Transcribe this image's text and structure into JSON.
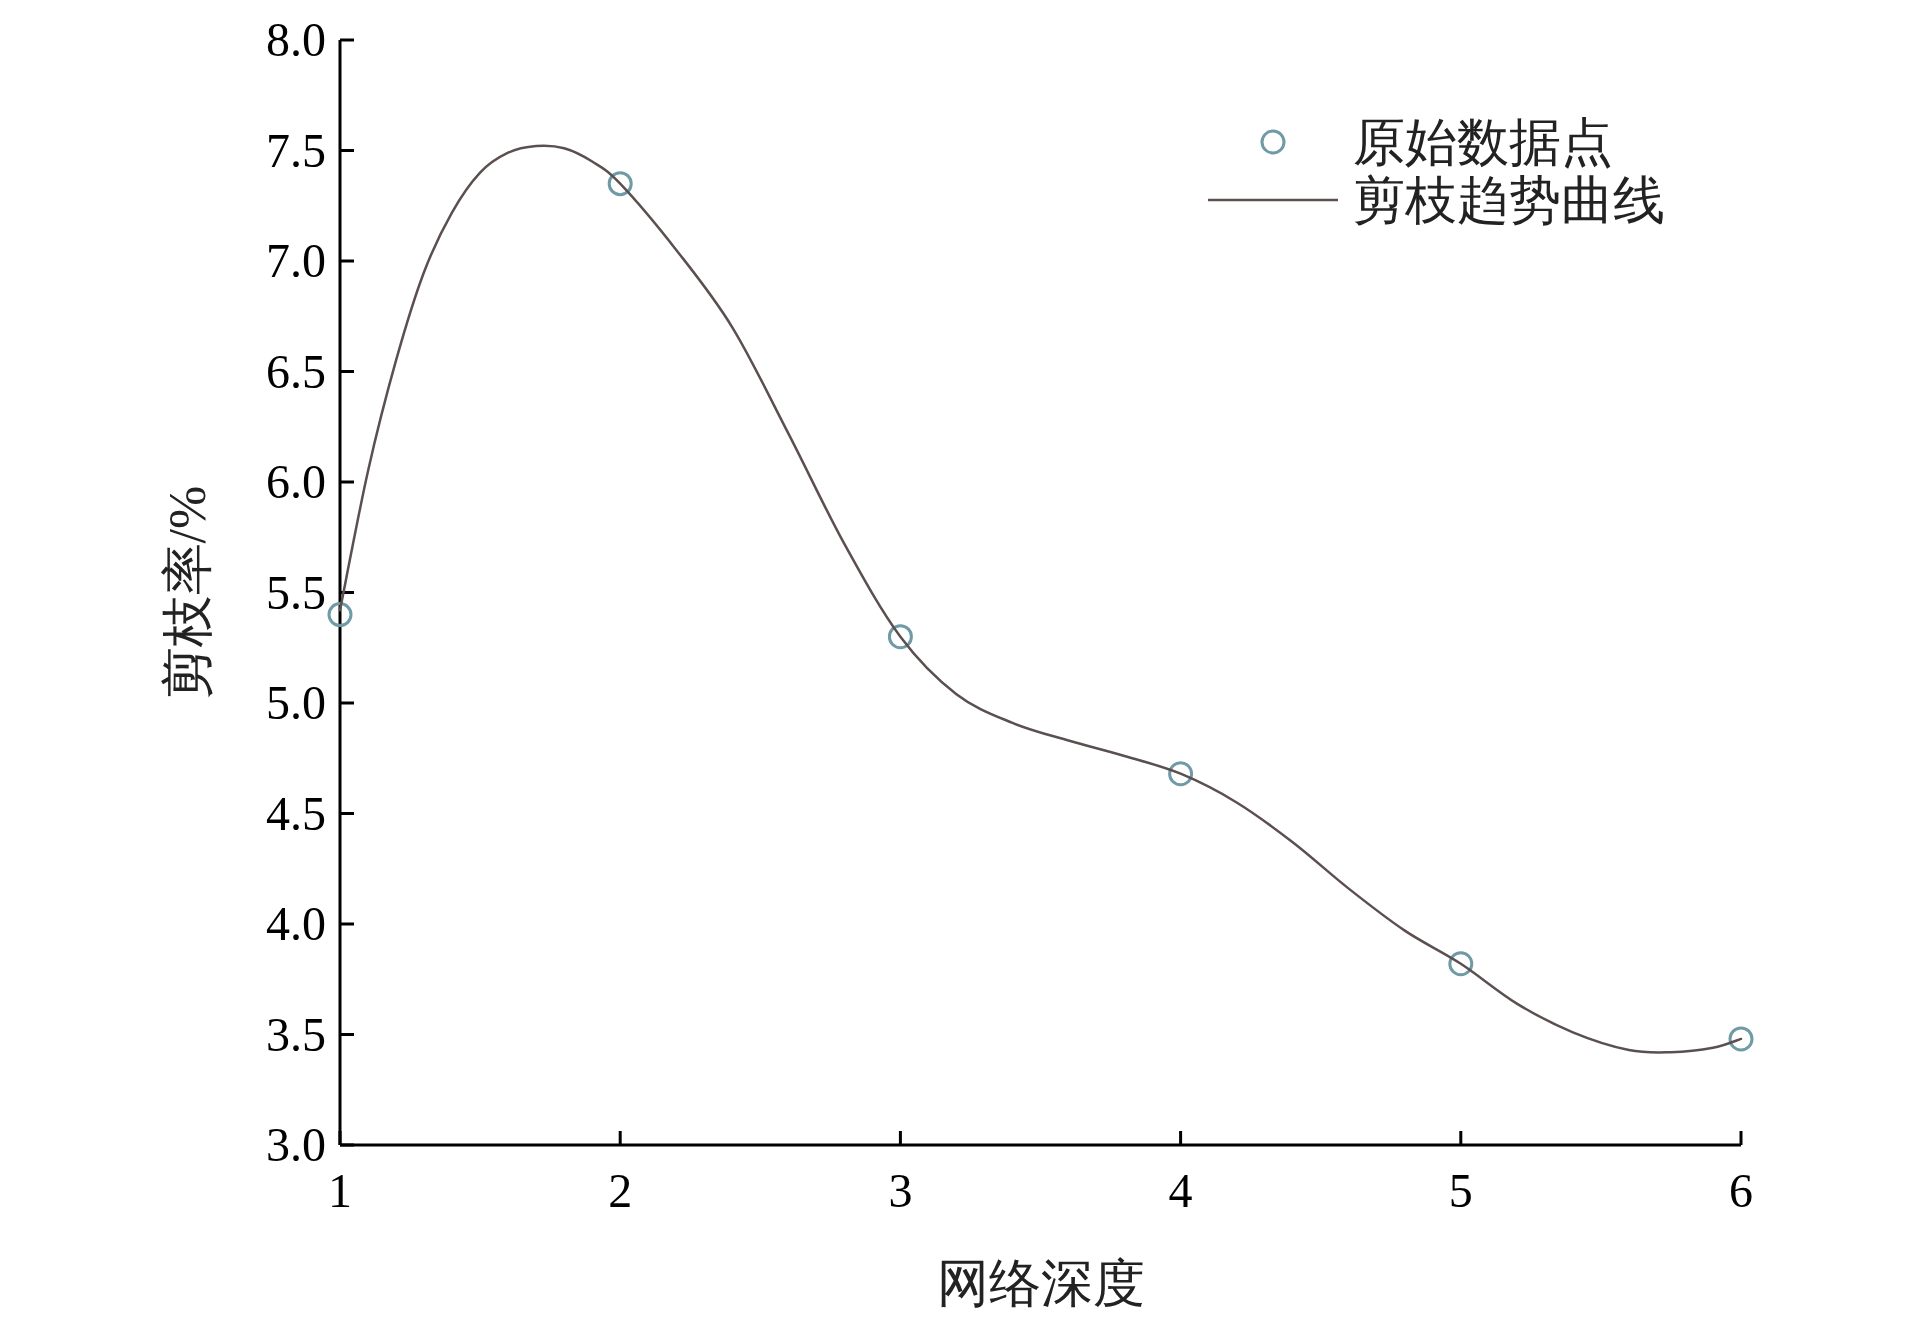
{
  "chart_data": {
    "type": "scatter",
    "xlabel": "网络深度",
    "ylabel": "剪枝率/%",
    "xlim": [
      1,
      6
    ],
    "xticks": [
      1,
      2,
      3,
      4,
      5,
      6
    ],
    "ylim": [
      3,
      8
    ],
    "yticks": [
      {
        "value": 3,
        "label": "3.0"
      },
      {
        "value": 3.5,
        "label": "3.5"
      },
      {
        "value": 4,
        "label": "4.0"
      },
      {
        "value": 4.5,
        "label": "4.5"
      },
      {
        "value": 5,
        "label": "5.0"
      },
      {
        "value": 5.5,
        "label": "5.5"
      },
      {
        "value": 6,
        "label": "6.0"
      },
      {
        "value": 6.5,
        "label": "6.5"
      },
      {
        "value": 7,
        "label": "7.0"
      },
      {
        "value": 7.5,
        "label": "7.5"
      },
      {
        "value": 8,
        "label": "8.0"
      }
    ],
    "legend": "top right",
    "grid": false,
    "series": [
      {
        "name": "原始数据点",
        "marker": "circle",
        "color": "#6f9aa6",
        "x": [
          1,
          2,
          3,
          4,
          5,
          6
        ],
        "values": [
          5.4,
          7.35,
          5.3,
          4.68,
          3.82,
          3.48
        ]
      },
      {
        "name": "剪枝趋势曲线",
        "type": "line",
        "marker": "none",
        "line_style": "solid",
        "color": "#5b4f4f",
        "x": [
          1.0,
          1.1,
          1.2,
          1.3,
          1.4,
          1.5,
          1.6,
          1.7,
          1.8,
          1.9,
          2.0,
          2.2,
          2.4,
          2.6,
          2.8,
          3.0,
          3.2,
          3.4,
          3.6,
          3.8,
          4.0,
          4.2,
          4.4,
          4.6,
          4.8,
          5.0,
          5.2,
          5.4,
          5.6,
          5.75,
          5.9,
          6.0
        ],
        "values": [
          5.42,
          6.05,
          6.55,
          6.95,
          7.22,
          7.4,
          7.49,
          7.52,
          7.51,
          7.45,
          7.35,
          7.05,
          6.7,
          6.22,
          5.72,
          5.3,
          5.04,
          4.91,
          4.83,
          4.76,
          4.68,
          4.55,
          4.37,
          4.16,
          3.97,
          3.82,
          3.64,
          3.51,
          3.43,
          3.42,
          3.44,
          3.48
        ]
      }
    ]
  }
}
